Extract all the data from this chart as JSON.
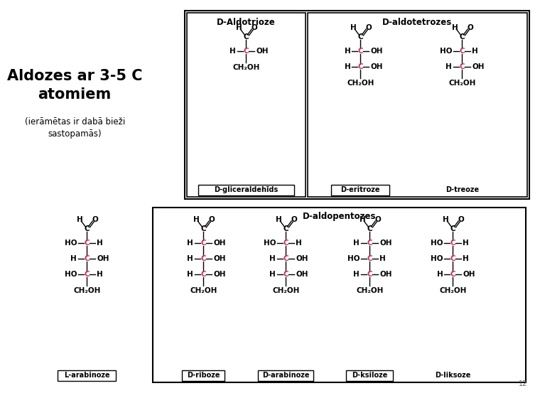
{
  "title_left": "Aldozes ar 3-5 C\natomiem",
  "subtitle_left": "(ierāmētas ir dabā bieži\nsastopamās)",
  "bg_color": "#ffffff",
  "text_color": "#000000",
  "carbon_color": "#cc3366",
  "section1_title": "D-Aldotrioze",
  "section2_title": "D-aldotetrozes",
  "section3_title": "D-aldopentozes",
  "mol_glyceraldehyde": "D-gliceraldehīds",
  "mol_eritroze": "D-eritroze",
  "mol_treoze": "D-treoze",
  "mol_larabinoze": "L-arabinoze",
  "mol_riboze": "D-riboze",
  "mol_arabinoze": "D-arabinoze",
  "mol_ksiloze": "D-ksiloze",
  "mol_liksoze": "D-liksoze",
  "page_number": "12"
}
